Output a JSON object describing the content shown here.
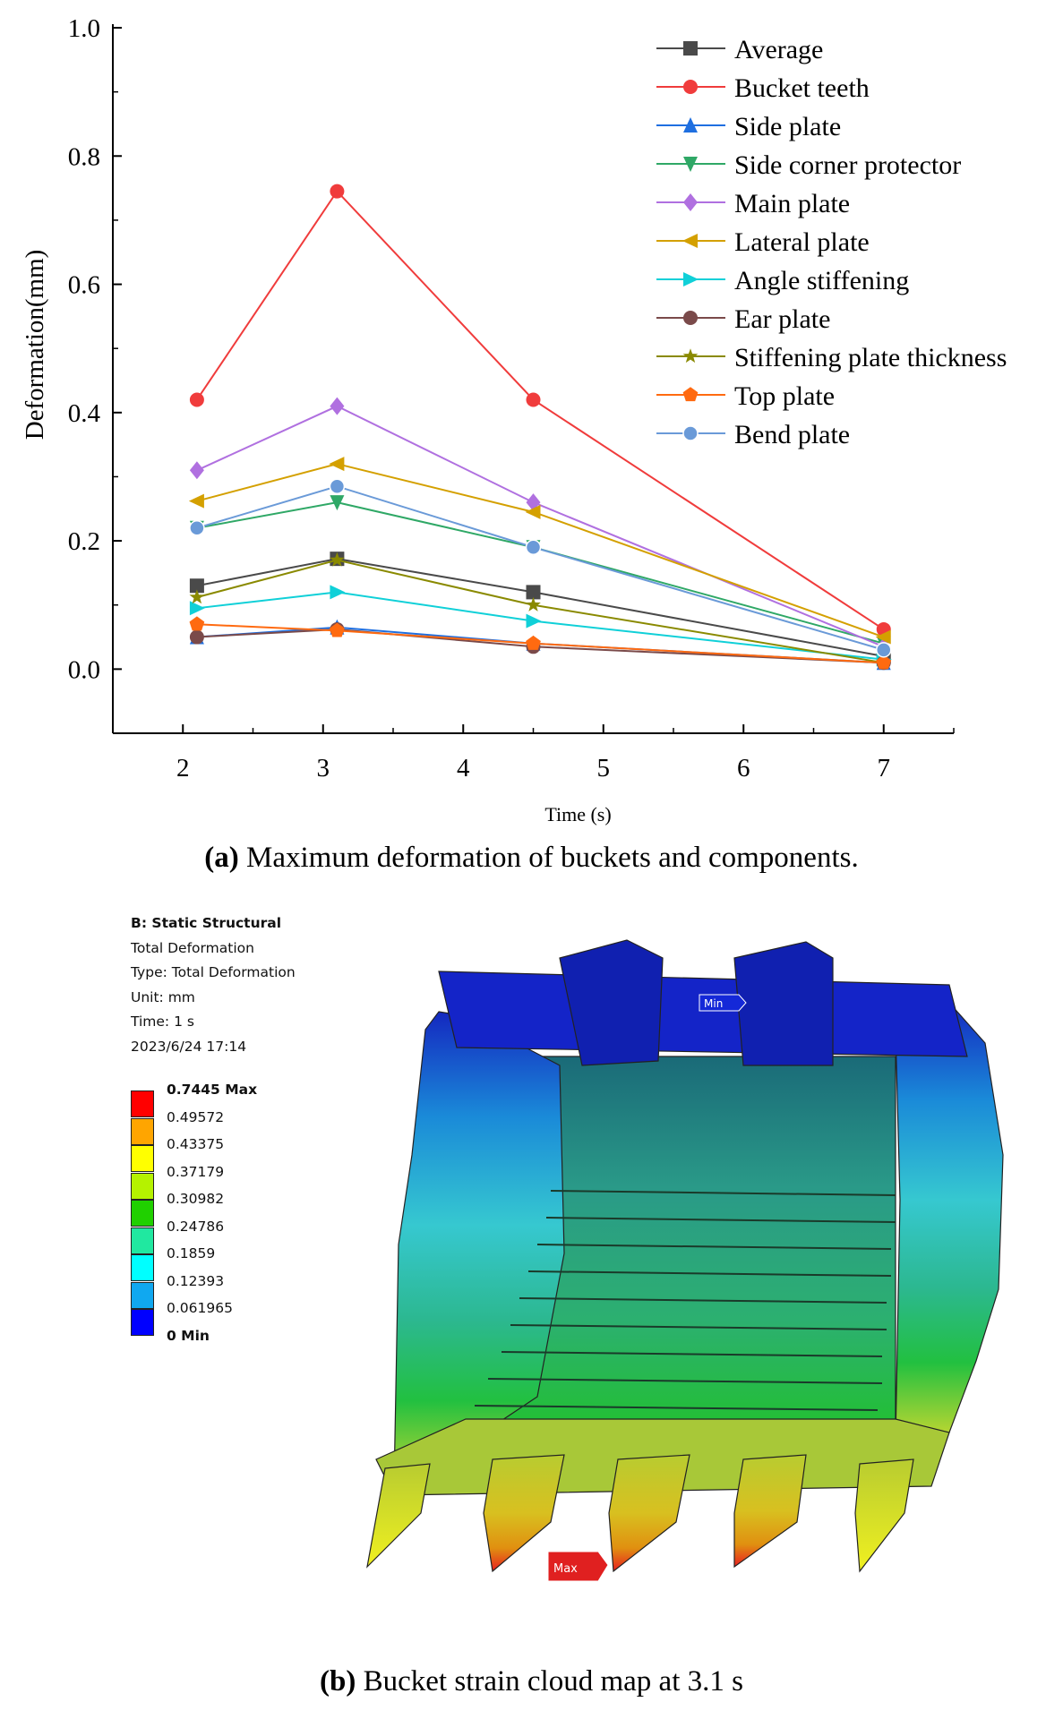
{
  "chart_data": {
    "type": "line",
    "title": "",
    "xlabel": "Time (s)",
    "ylabel": "Deformation(mm)",
    "xlim": [
      1.5,
      7.5
    ],
    "ylim": [
      -0.1,
      1.0
    ],
    "xticks": [
      2,
      3,
      4,
      5,
      6,
      7
    ],
    "yticks": [
      0.0,
      0.2,
      0.4,
      0.6,
      0.8,
      1.0
    ],
    "ytick_labels": [
      "0.0",
      "0.2",
      "0.4",
      "0.6",
      "0.8",
      "1.0"
    ],
    "grid": false,
    "legend_position": "top-right",
    "x": [
      2.1,
      3.1,
      4.5,
      7
    ],
    "series": [
      {
        "name": "Average",
        "color": "#4a4a4a",
        "marker": "square",
        "values": [
          0.13,
          0.172,
          0.12,
          0.02
        ]
      },
      {
        "name": "Bucket teeth",
        "color": "#f03c3c",
        "marker": "circle",
        "values": [
          0.42,
          0.745,
          0.42,
          0.062
        ]
      },
      {
        "name": "Side plate",
        "color": "#1f6fe0",
        "marker": "triangle-up",
        "values": [
          0.05,
          0.065,
          0.04,
          0.01
        ]
      },
      {
        "name": "Side corner protector",
        "color": "#2fa866",
        "marker": "triangle-down",
        "values": [
          0.22,
          0.26,
          0.19,
          0.04
        ]
      },
      {
        "name": "Main plate",
        "color": "#b070e0",
        "marker": "diamond",
        "values": [
          0.31,
          0.41,
          0.26,
          0.035
        ]
      },
      {
        "name": "Lateral plate",
        "color": "#d4a000",
        "marker": "triangle-left",
        "values": [
          0.262,
          0.32,
          0.245,
          0.05
        ]
      },
      {
        "name": "Angle stiffening",
        "color": "#10d0d8",
        "marker": "triangle-right",
        "values": [
          0.095,
          0.12,
          0.075,
          0.015
        ]
      },
      {
        "name": "Ear plate",
        "color": "#7a4a4a",
        "marker": "hexagon",
        "values": [
          0.05,
          0.062,
          0.035,
          0.01
        ]
      },
      {
        "name": "Stiffening plate thickness",
        "color": "#8a8a00",
        "marker": "star",
        "values": [
          0.112,
          0.17,
          0.1,
          0.01
        ]
      },
      {
        "name": "Top plate",
        "color": "#ff6a10",
        "marker": "pentagon",
        "values": [
          0.07,
          0.06,
          0.04,
          0.01
        ]
      },
      {
        "name": "Bend plate",
        "color": "#6a9ad8",
        "marker": "sphere",
        "values": [
          0.22,
          0.285,
          0.19,
          0.03
        ]
      }
    ]
  },
  "captions": {
    "a_label": "(a)",
    "a_text": " Maximum deformation of buckets and components.",
    "b_label": "(b)",
    "b_text": " Bucket strain cloud map at 3.1 s"
  },
  "ansys": {
    "header": "B: Static Structural",
    "lines": [
      "Total Deformation",
      "Type: Total Deformation",
      "Unit: mm",
      "Time: 1 s",
      "2023/6/24 17:14"
    ],
    "legend": [
      {
        "label": "0.7445 Max",
        "color": "#ff0000",
        "bold": true
      },
      {
        "label": "0.49572",
        "color": "#ffa500"
      },
      {
        "label": "0.43375",
        "color": "#ffff00"
      },
      {
        "label": "0.37179",
        "color": "#b5f200"
      },
      {
        "label": "0.30982",
        "color": "#20d000"
      },
      {
        "label": "0.24786",
        "color": "#20e8a0"
      },
      {
        "label": "0.1859",
        "color": "#00ffff"
      },
      {
        "label": "0.12393",
        "color": "#10a8f0"
      },
      {
        "label": "0.061965",
        "color": "#0000ff"
      },
      {
        "label": "0 Min",
        "bold": true
      }
    ],
    "min_tag": "Min",
    "max_tag": "Max"
  }
}
